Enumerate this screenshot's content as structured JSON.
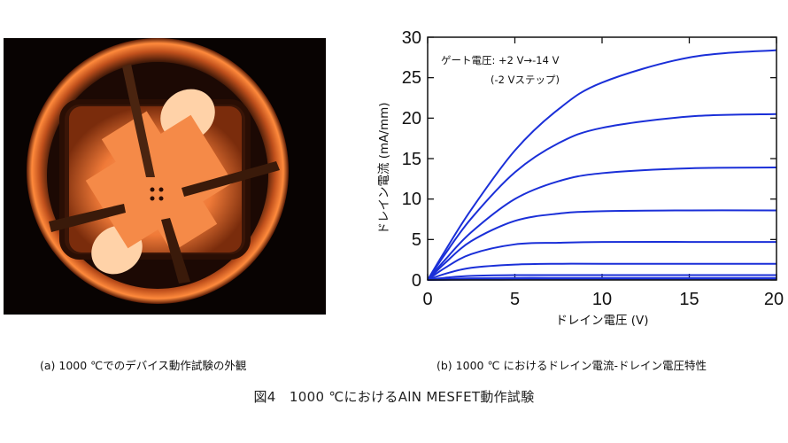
{
  "photo": {
    "caption": "(a) 1000 ℃でのデバイス動作試験の外観",
    "glow_color": "#ff8a3c"
  },
  "chart_caption": "(b) 1000 ℃ におけるドレイン電流-ドレイン電圧特性",
  "figure_title": "図4　1000 ℃におけるAlN MESFET動作試験",
  "chart_data": {
    "type": "line",
    "xlabel": "ドレイン電圧 (V)",
    "ylabel": "ドレイン電流 (mA/mm)",
    "xlim": [
      0,
      20
    ],
    "ylim": [
      0,
      30
    ],
    "xticks": [
      "0",
      "5",
      "10",
      "15",
      "20"
    ],
    "yticks": [
      "0",
      "5",
      "10",
      "15",
      "20",
      "25",
      "30"
    ],
    "grid": false,
    "annotation": [
      "ゲート電圧: +2 V→-14 V",
      "(-2 Vステップ)"
    ],
    "line_color": "#1a2fd8",
    "x": [
      0,
      1,
      2.5,
      5,
      7.5,
      10,
      15,
      20
    ],
    "series": [
      {
        "values": [
          0,
          3.6,
          8.7,
          16.0,
          21.1,
          24.4,
          27.5,
          28.4
        ]
      },
      {
        "values": [
          0,
          3.2,
          7.6,
          13.3,
          16.9,
          18.8,
          20.2,
          20.5
        ]
      },
      {
        "values": [
          0,
          2.5,
          5.9,
          10.0,
          12.2,
          13.2,
          13.8,
          13.9
        ]
      },
      {
        "values": [
          0,
          2.1,
          4.8,
          7.3,
          8.2,
          8.5,
          8.6,
          8.6
        ]
      },
      {
        "values": [
          0,
          1.5,
          3.2,
          4.4,
          4.6,
          4.7,
          4.7,
          4.7
        ]
      },
      {
        "values": [
          0,
          0.76,
          1.5,
          1.9,
          2.0,
          2.0,
          2.0,
          2.0
        ]
      },
      {
        "values": [
          0,
          0.28,
          0.51,
          0.6,
          0.6,
          0.6,
          0.6,
          0.6
        ]
      },
      {
        "values": [
          0,
          0.1,
          0.2,
          0.25,
          0.25,
          0.25,
          0.25,
          0.25
        ]
      },
      {
        "values": [
          0,
          0.02,
          0.04,
          0.05,
          0.05,
          0.05,
          0.05,
          0.05
        ]
      }
    ]
  }
}
